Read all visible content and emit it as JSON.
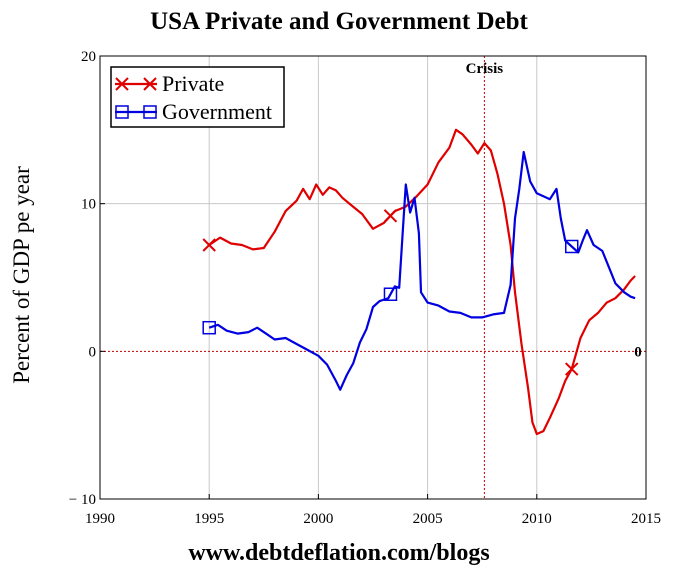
{
  "chart_data": {
    "type": "line",
    "title": "USA Private and Government Debt",
    "xlabel": "",
    "ylabel": "Percent of GDP pe year",
    "xlim": [
      1990,
      2015
    ],
    "ylim": [
      -10,
      20
    ],
    "x_ticks": [
      1990,
      1995,
      2000,
      2005,
      2010,
      2015
    ],
    "y_ticks": [
      -10,
      0,
      10,
      20
    ],
    "grid": true,
    "legend_position": "top-left",
    "annotations": {
      "crisis_label": "Crisis",
      "crisis_x": 2007.6,
      "zero_label": "0"
    },
    "series": [
      {
        "name": "Private",
        "color": "#e00000",
        "marker": "x",
        "marker_x": [
          1995.0,
          2003.3,
          2011.6
        ],
        "points": [
          [
            1995.0,
            7.2
          ],
          [
            1995.5,
            7.7
          ],
          [
            1996.0,
            7.3
          ],
          [
            1996.5,
            7.2
          ],
          [
            1997.0,
            6.9
          ],
          [
            1997.5,
            7.0
          ],
          [
            1998.0,
            8.1
          ],
          [
            1998.5,
            9.5
          ],
          [
            1999.0,
            10.2
          ],
          [
            1999.3,
            11.0
          ],
          [
            1999.6,
            10.3
          ],
          [
            1999.9,
            11.3
          ],
          [
            2000.2,
            10.6
          ],
          [
            2000.5,
            11.1
          ],
          [
            2000.8,
            10.9
          ],
          [
            2001.1,
            10.4
          ],
          [
            2001.5,
            9.9
          ],
          [
            2002.0,
            9.3
          ],
          [
            2002.5,
            8.3
          ],
          [
            2003.0,
            8.7
          ],
          [
            2003.5,
            9.5
          ],
          [
            2004.0,
            9.8
          ],
          [
            2004.5,
            10.5
          ],
          [
            2005.0,
            11.3
          ],
          [
            2005.5,
            12.8
          ],
          [
            2006.0,
            13.8
          ],
          [
            2006.3,
            15.0
          ],
          [
            2006.6,
            14.7
          ],
          [
            2007.0,
            14.0
          ],
          [
            2007.3,
            13.4
          ],
          [
            2007.6,
            14.1
          ],
          [
            2007.9,
            13.6
          ],
          [
            2008.2,
            12.0
          ],
          [
            2008.5,
            10.0
          ],
          [
            2008.8,
            7.2
          ],
          [
            2009.0,
            4.0
          ],
          [
            2009.3,
            0.5
          ],
          [
            2009.6,
            -2.5
          ],
          [
            2009.8,
            -4.8
          ],
          [
            2010.0,
            -5.6
          ],
          [
            2010.3,
            -5.4
          ],
          [
            2010.6,
            -4.5
          ],
          [
            2011.0,
            -3.2
          ],
          [
            2011.3,
            -2.0
          ],
          [
            2011.6,
            -1.2
          ],
          [
            2012.0,
            0.9
          ],
          [
            2012.4,
            2.1
          ],
          [
            2012.8,
            2.6
          ],
          [
            2013.2,
            3.3
          ],
          [
            2013.6,
            3.6
          ],
          [
            2014.0,
            4.2
          ],
          [
            2014.3,
            4.8
          ],
          [
            2014.5,
            5.1
          ]
        ]
      },
      {
        "name": "Government",
        "color": "#0000e0",
        "marker": "square",
        "marker_x": [
          1995.0,
          2003.3,
          2011.6
        ],
        "points": [
          [
            1995.0,
            1.6
          ],
          [
            1995.4,
            1.8
          ],
          [
            1995.8,
            1.4
          ],
          [
            1996.3,
            1.2
          ],
          [
            1996.8,
            1.3
          ],
          [
            1997.2,
            1.6
          ],
          [
            1997.6,
            1.2
          ],
          [
            1998.0,
            0.8
          ],
          [
            1998.5,
            0.9
          ],
          [
            1999.0,
            0.5
          ],
          [
            1999.5,
            0.1
          ],
          [
            2000.0,
            -0.3
          ],
          [
            2000.4,
            -0.9
          ],
          [
            2000.8,
            -2.0
          ],
          [
            2001.0,
            -2.6
          ],
          [
            2001.3,
            -1.6
          ],
          [
            2001.6,
            -0.8
          ],
          [
            2001.9,
            0.6
          ],
          [
            2002.2,
            1.5
          ],
          [
            2002.5,
            3.0
          ],
          [
            2002.8,
            3.4
          ],
          [
            2003.2,
            3.6
          ],
          [
            2003.5,
            4.4
          ],
          [
            2003.7,
            4.3
          ],
          [
            2003.9,
            9.0
          ],
          [
            2004.0,
            11.3
          ],
          [
            2004.2,
            9.4
          ],
          [
            2004.4,
            10.4
          ],
          [
            2004.6,
            8.0
          ],
          [
            2004.7,
            4.0
          ],
          [
            2005.0,
            3.3
          ],
          [
            2005.5,
            3.1
          ],
          [
            2006.0,
            2.7
          ],
          [
            2006.5,
            2.6
          ],
          [
            2007.0,
            2.3
          ],
          [
            2007.5,
            2.3
          ],
          [
            2008.0,
            2.5
          ],
          [
            2008.5,
            2.6
          ],
          [
            2008.8,
            4.5
          ],
          [
            2009.0,
            9.0
          ],
          [
            2009.2,
            11.0
          ],
          [
            2009.4,
            13.5
          ],
          [
            2009.7,
            11.5
          ],
          [
            2010.0,
            10.7
          ],
          [
            2010.3,
            10.5
          ],
          [
            2010.6,
            10.3
          ],
          [
            2010.9,
            11.0
          ],
          [
            2011.1,
            9.0
          ],
          [
            2011.3,
            7.5
          ],
          [
            2011.6,
            7.1
          ],
          [
            2011.9,
            6.7
          ],
          [
            2012.1,
            7.5
          ],
          [
            2012.3,
            8.2
          ],
          [
            2012.6,
            7.2
          ],
          [
            2013.0,
            6.8
          ],
          [
            2013.3,
            5.7
          ],
          [
            2013.6,
            4.6
          ],
          [
            2014.0,
            4.0
          ],
          [
            2014.3,
            3.7
          ],
          [
            2014.5,
            3.6
          ]
        ]
      }
    ]
  },
  "footer": {
    "url": "www.debtdeflation.com/blogs"
  }
}
